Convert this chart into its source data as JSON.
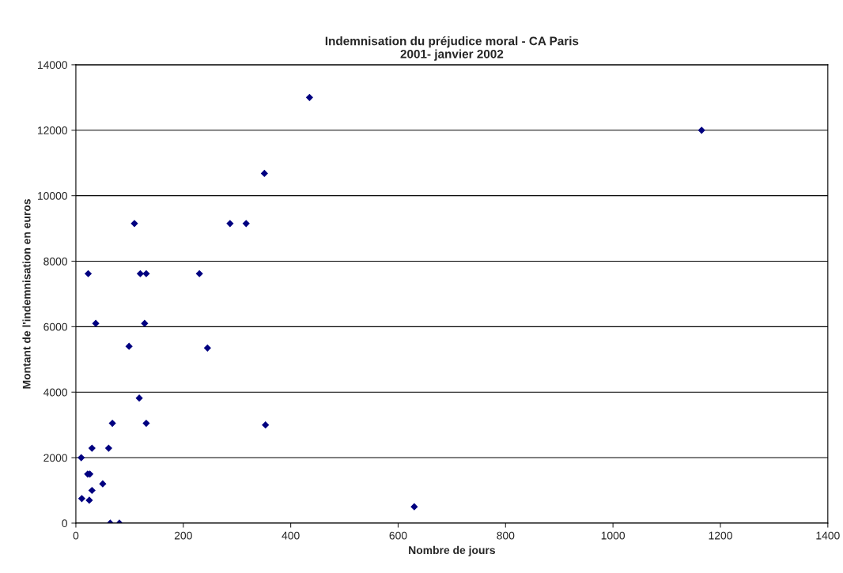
{
  "chart_data": {
    "type": "scatter",
    "title": "Indemnisation du préjudice moral - CA Paris\n2001- janvier 2002",
    "xlabel": "Nombre de jours",
    "ylabel": "Montant de l'indemnisation en euros",
    "x": [
      10,
      11,
      22,
      26,
      30,
      25,
      30,
      61,
      50,
      68,
      131,
      118,
      64,
      81,
      37,
      128,
      99,
      245,
      23,
      120,
      131,
      230,
      109,
      287,
      317,
      351,
      435,
      353,
      630,
      1165
    ],
    "series": [
      {
        "color": "#000080",
        "values": [
          2000,
          750,
          1500,
          1500,
          1000,
          700,
          2290,
          2290,
          1200,
          3050,
          3050,
          3820,
          0,
          0,
          6100,
          6100,
          5400,
          5350,
          7620,
          7620,
          7620,
          7620,
          9150,
          9150,
          9150,
          10680,
          13000,
          3000,
          500,
          12000
        ]
      }
    ],
    "xlim": [
      0,
      1400
    ],
    "xticks": [
      0,
      200,
      400,
      600,
      800,
      1000,
      1200,
      1400
    ],
    "ylim": [
      0,
      14000
    ],
    "yticks": [
      0,
      2000,
      4000,
      6000,
      8000,
      10000,
      12000,
      14000
    ],
    "grid": "y",
    "marker": "diamond",
    "legend": false
  }
}
